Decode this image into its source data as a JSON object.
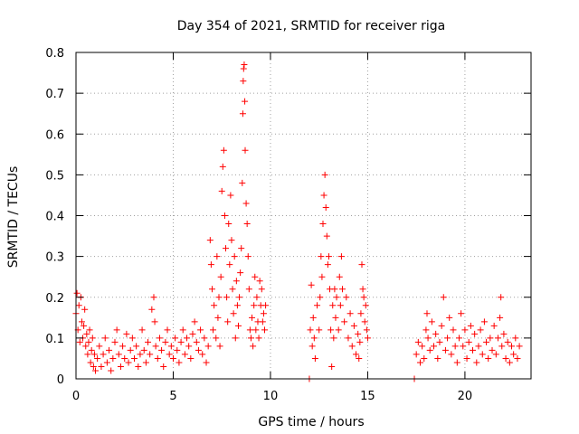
{
  "chart_data": {
    "type": "scatter",
    "title": "Day 354 of 2021, SRMTID for receiver riga",
    "xlabel": "GPS time / hours",
    "ylabel": "SRMTID / TECUs",
    "xlim": [
      0,
      23.4
    ],
    "ylim": [
      0,
      0.8
    ],
    "xticks": [
      0,
      5,
      10,
      15,
      20
    ],
    "xtick_labels": [
      "0",
      "5",
      "10",
      "15",
      "20"
    ],
    "yticks": [
      0,
      0.1,
      0.2,
      0.3,
      0.4,
      0.5,
      0.6,
      0.7,
      0.8
    ],
    "ytick_labels": [
      "0",
      "0.1",
      "0.2",
      "0.3",
      "0.4",
      "0.5",
      "0.6",
      "0.7",
      "0.8"
    ],
    "grid": true,
    "marker": "+",
    "colors": {
      "series": "#ff0000",
      "grid": "#a0a0a0",
      "axes": "#000000"
    },
    "series": [
      {
        "name": "SRMTID",
        "points": [
          [
            0.0,
            0.16
          ],
          [
            0.05,
            0.21
          ],
          [
            0.1,
            0.12
          ],
          [
            0.15,
            0.18
          ],
          [
            0.2,
            0.09
          ],
          [
            0.25,
            0.2
          ],
          [
            0.3,
            0.14
          ],
          [
            0.35,
            0.1
          ],
          [
            0.4,
            0.13
          ],
          [
            0.45,
            0.17
          ],
          [
            0.5,
            0.08
          ],
          [
            0.55,
            0.11
          ],
          [
            0.6,
            0.06
          ],
          [
            0.65,
            0.09
          ],
          [
            0.7,
            0.12
          ],
          [
            0.75,
            0.04
          ],
          [
            0.8,
            0.07
          ],
          [
            0.85,
            0.1
          ],
          [
            0.9,
            0.03
          ],
          [
            0.95,
            0.06
          ],
          [
            1.0,
            0.02
          ],
          [
            1.1,
            0.05
          ],
          [
            1.2,
            0.08
          ],
          [
            1.3,
            0.03
          ],
          [
            1.4,
            0.06
          ],
          [
            1.5,
            0.1
          ],
          [
            1.6,
            0.04
          ],
          [
            1.7,
            0.07
          ],
          [
            1.8,
            0.02
          ],
          [
            1.9,
            0.05
          ],
          [
            2.0,
            0.09
          ],
          [
            2.1,
            0.12
          ],
          [
            2.2,
            0.06
          ],
          [
            2.3,
            0.03
          ],
          [
            2.4,
            0.08
          ],
          [
            2.5,
            0.05
          ],
          [
            2.6,
            0.11
          ],
          [
            2.7,
            0.04
          ],
          [
            2.8,
            0.07
          ],
          [
            2.9,
            0.1
          ],
          [
            3.0,
            0.05
          ],
          [
            3.1,
            0.08
          ],
          [
            3.2,
            0.03
          ],
          [
            3.3,
            0.06
          ],
          [
            3.4,
            0.12
          ],
          [
            3.5,
            0.07
          ],
          [
            3.6,
            0.04
          ],
          [
            3.7,
            0.09
          ],
          [
            3.8,
            0.06
          ],
          [
            3.9,
            0.17
          ],
          [
            4.0,
            0.2
          ],
          [
            4.05,
            0.14
          ],
          [
            4.1,
            0.08
          ],
          [
            4.2,
            0.05
          ],
          [
            4.3,
            0.1
          ],
          [
            4.4,
            0.07
          ],
          [
            4.5,
            0.03
          ],
          [
            4.6,
            0.09
          ],
          [
            4.7,
            0.12
          ],
          [
            4.8,
            0.06
          ],
          [
            4.9,
            0.08
          ],
          [
            5.0,
            0.05
          ],
          [
            5.1,
            0.1
          ],
          [
            5.2,
            0.07
          ],
          [
            5.3,
            0.04
          ],
          [
            5.4,
            0.09
          ],
          [
            5.5,
            0.12
          ],
          [
            5.6,
            0.06
          ],
          [
            5.7,
            0.1
          ],
          [
            5.8,
            0.08
          ],
          [
            5.9,
            0.05
          ],
          [
            6.0,
            0.11
          ],
          [
            6.1,
            0.14
          ],
          [
            6.2,
            0.09
          ],
          [
            6.3,
            0.07
          ],
          [
            6.4,
            0.12
          ],
          [
            6.5,
            0.06
          ],
          [
            6.6,
            0.1
          ],
          [
            6.7,
            0.04
          ],
          [
            6.8,
            0.08
          ],
          [
            6.9,
            0.34
          ],
          [
            6.95,
            0.28
          ],
          [
            7.0,
            0.22
          ],
          [
            7.05,
            0.12
          ],
          [
            7.1,
            0.18
          ],
          [
            7.2,
            0.1
          ],
          [
            7.25,
            0.3
          ],
          [
            7.3,
            0.15
          ],
          [
            7.35,
            0.2
          ],
          [
            7.4,
            0.08
          ],
          [
            7.45,
            0.25
          ],
          [
            7.5,
            0.46
          ],
          [
            7.55,
            0.52
          ],
          [
            7.6,
            0.56
          ],
          [
            7.65,
            0.4
          ],
          [
            7.7,
            0.32
          ],
          [
            7.75,
            0.2
          ],
          [
            7.8,
            0.14
          ],
          [
            7.85,
            0.38
          ],
          [
            7.9,
            0.28
          ],
          [
            7.95,
            0.45
          ],
          [
            8.0,
            0.34
          ],
          [
            8.05,
            0.22
          ],
          [
            8.1,
            0.16
          ],
          [
            8.15,
            0.3
          ],
          [
            8.2,
            0.1
          ],
          [
            8.25,
            0.24
          ],
          [
            8.3,
            0.18
          ],
          [
            8.35,
            0.13
          ],
          [
            8.4,
            0.2
          ],
          [
            8.45,
            0.26
          ],
          [
            8.5,
            0.32
          ],
          [
            8.55,
            0.48
          ],
          [
            8.58,
            0.65
          ],
          [
            8.6,
            0.73
          ],
          [
            8.62,
            0.76
          ],
          [
            8.65,
            0.77
          ],
          [
            8.68,
            0.68
          ],
          [
            8.7,
            0.56
          ],
          [
            8.75,
            0.43
          ],
          [
            8.8,
            0.38
          ],
          [
            8.85,
            0.3
          ],
          [
            8.9,
            0.22
          ],
          [
            8.95,
            0.12
          ],
          [
            9.0,
            0.1
          ],
          [
            9.05,
            0.15
          ],
          [
            9.1,
            0.08
          ],
          [
            9.15,
            0.18
          ],
          [
            9.2,
            0.25
          ],
          [
            9.25,
            0.12
          ],
          [
            9.3,
            0.2
          ],
          [
            9.35,
            0.14
          ],
          [
            9.4,
            0.1
          ],
          [
            9.45,
            0.24
          ],
          [
            9.5,
            0.18
          ],
          [
            9.55,
            0.22
          ],
          [
            9.6,
            0.14
          ],
          [
            9.65,
            0.16
          ],
          [
            9.7,
            0.12
          ],
          [
            9.75,
            0.18
          ],
          [
            12.0,
            0.0
          ],
          [
            12.05,
            0.12
          ],
          [
            12.1,
            0.23
          ],
          [
            12.15,
            0.08
          ],
          [
            12.2,
            0.15
          ],
          [
            12.25,
            0.1
          ],
          [
            12.3,
            0.05
          ],
          [
            12.4,
            0.18
          ],
          [
            12.5,
            0.12
          ],
          [
            12.55,
            0.2
          ],
          [
            12.6,
            0.3
          ],
          [
            12.65,
            0.25
          ],
          [
            12.7,
            0.38
          ],
          [
            12.75,
            0.45
          ],
          [
            12.8,
            0.5
          ],
          [
            12.85,
            0.42
          ],
          [
            12.9,
            0.35
          ],
          [
            12.95,
            0.28
          ],
          [
            13.0,
            0.3
          ],
          [
            13.05,
            0.22
          ],
          [
            13.1,
            0.12
          ],
          [
            13.15,
            0.03
          ],
          [
            13.2,
            0.18
          ],
          [
            13.25,
            0.1
          ],
          [
            13.3,
            0.22
          ],
          [
            13.35,
            0.15
          ],
          [
            13.4,
            0.2
          ],
          [
            13.5,
            0.12
          ],
          [
            13.55,
            0.25
          ],
          [
            13.6,
            0.18
          ],
          [
            13.65,
            0.3
          ],
          [
            13.7,
            0.22
          ],
          [
            13.8,
            0.14
          ],
          [
            13.9,
            0.2
          ],
          [
            14.0,
            0.1
          ],
          [
            14.1,
            0.16
          ],
          [
            14.2,
            0.08
          ],
          [
            14.3,
            0.13
          ],
          [
            14.4,
            0.06
          ],
          [
            14.5,
            0.11
          ],
          [
            14.55,
            0.05
          ],
          [
            14.6,
            0.09
          ],
          [
            14.65,
            0.16
          ],
          [
            14.7,
            0.28
          ],
          [
            14.75,
            0.22
          ],
          [
            14.8,
            0.2
          ],
          [
            14.85,
            0.14
          ],
          [
            14.9,
            0.18
          ],
          [
            14.95,
            0.12
          ],
          [
            15.0,
            0.1
          ],
          [
            17.4,
            0.0
          ],
          [
            17.5,
            0.06
          ],
          [
            17.6,
            0.09
          ],
          [
            17.7,
            0.04
          ],
          [
            17.8,
            0.08
          ],
          [
            17.9,
            0.05
          ],
          [
            18.0,
            0.12
          ],
          [
            18.05,
            0.16
          ],
          [
            18.1,
            0.1
          ],
          [
            18.2,
            0.07
          ],
          [
            18.3,
            0.14
          ],
          [
            18.4,
            0.08
          ],
          [
            18.5,
            0.11
          ],
          [
            18.6,
            0.05
          ],
          [
            18.7,
            0.09
          ],
          [
            18.8,
            0.13
          ],
          [
            18.9,
            0.2
          ],
          [
            19.0,
            0.07
          ],
          [
            19.1,
            0.1
          ],
          [
            19.2,
            0.15
          ],
          [
            19.3,
            0.06
          ],
          [
            19.4,
            0.12
          ],
          [
            19.5,
            0.08
          ],
          [
            19.6,
            0.04
          ],
          [
            19.7,
            0.1
          ],
          [
            19.8,
            0.16
          ],
          [
            19.9,
            0.08
          ],
          [
            20.0,
            0.12
          ],
          [
            20.1,
            0.05
          ],
          [
            20.2,
            0.09
          ],
          [
            20.3,
            0.13
          ],
          [
            20.4,
            0.07
          ],
          [
            20.5,
            0.11
          ],
          [
            20.6,
            0.04
          ],
          [
            20.7,
            0.08
          ],
          [
            20.8,
            0.12
          ],
          [
            20.9,
            0.06
          ],
          [
            21.0,
            0.14
          ],
          [
            21.1,
            0.09
          ],
          [
            21.2,
            0.05
          ],
          [
            21.3,
            0.1
          ],
          [
            21.4,
            0.07
          ],
          [
            21.5,
            0.13
          ],
          [
            21.6,
            0.06
          ],
          [
            21.7,
            0.1
          ],
          [
            21.8,
            0.15
          ],
          [
            21.85,
            0.2
          ],
          [
            21.9,
            0.08
          ],
          [
            22.0,
            0.11
          ],
          [
            22.1,
            0.05
          ],
          [
            22.2,
            0.09
          ],
          [
            22.3,
            0.04
          ],
          [
            22.4,
            0.08
          ],
          [
            22.5,
            0.06
          ],
          [
            22.6,
            0.1
          ],
          [
            22.7,
            0.05
          ],
          [
            22.8,
            0.08
          ]
        ]
      }
    ]
  }
}
